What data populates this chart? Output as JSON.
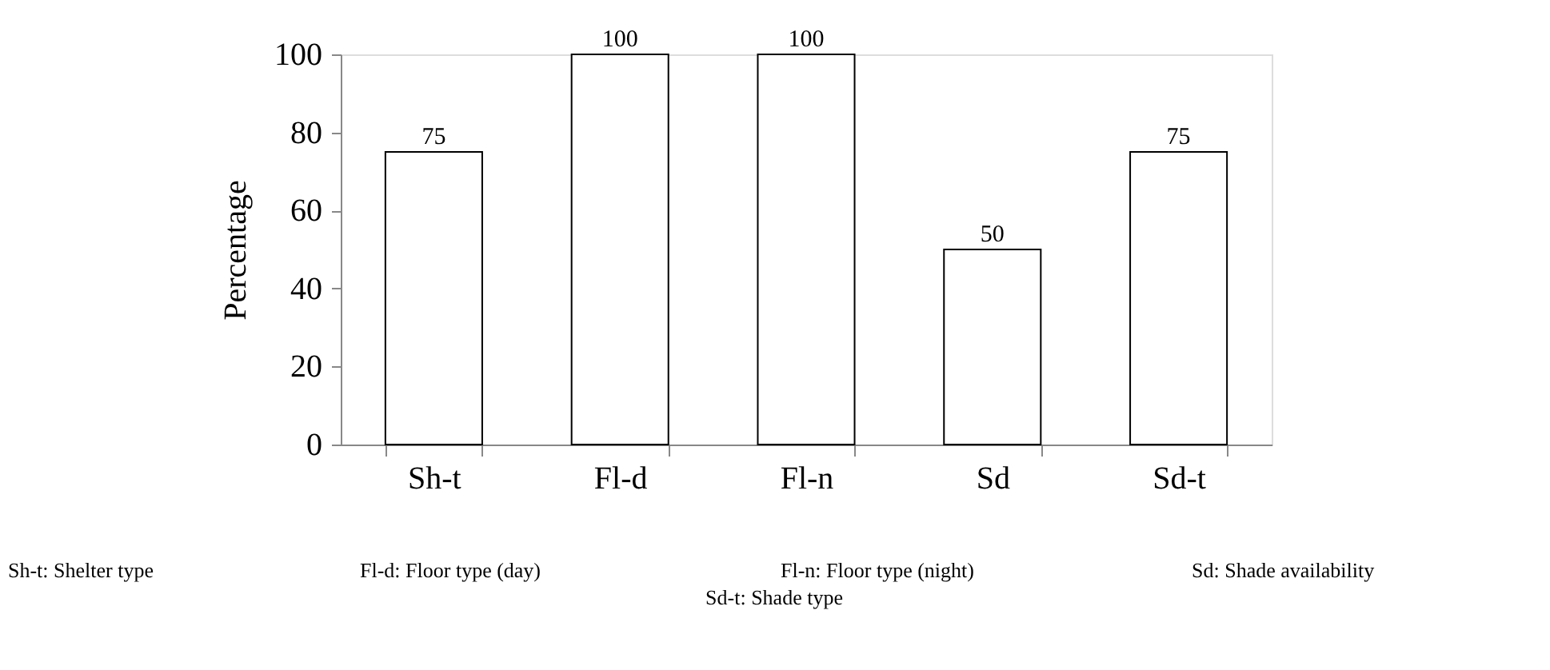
{
  "chart_data": {
    "type": "bar",
    "ylabel": "Percentage",
    "categories": [
      "Sh-t",
      "Fl-d",
      "Fl-n",
      "Sd",
      "Sd-t"
    ],
    "values": [
      75,
      100,
      100,
      50,
      75
    ],
    "color": "#ffffff",
    "ylim": [
      0,
      100
    ],
    "yticks": [
      0,
      20,
      40,
      60,
      80,
      100
    ],
    "grid": false,
    "data_labels": true,
    "annotations": [
      "Sh-t: Shelter type",
      "Fl-d: Floor type (day)",
      "Fl-n: Floor type (night)",
      "Sd: Shade availability",
      "Sd-t: Shade type"
    ]
  }
}
